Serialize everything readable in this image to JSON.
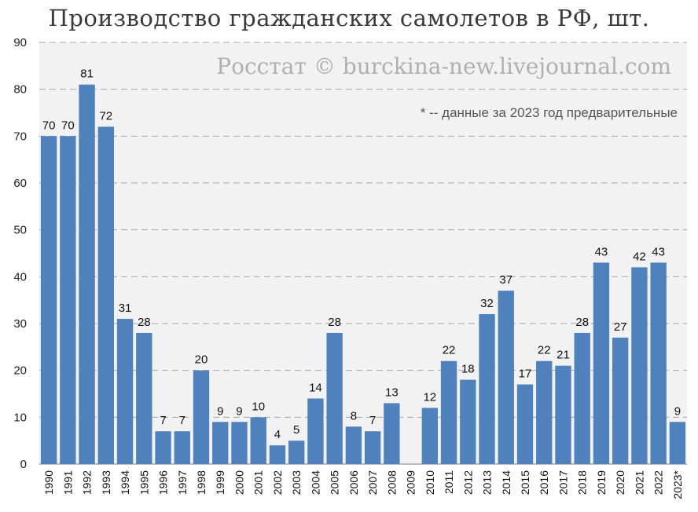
{
  "chart_data": {
    "type": "bar",
    "title": "Производство гражданских самолетов в РФ, шт.",
    "watermark": "Росстат © burckina-new.livejournal.com",
    "footnote": "* -- данные за 2023 год предварительные",
    "categories": [
      "1990",
      "1991",
      "1992",
      "1993",
      "1994",
      "1995",
      "1996",
      "1997",
      "1998",
      "1999",
      "2000",
      "2001",
      "2002",
      "2003",
      "2004",
      "2005",
      "2006",
      "2007",
      "2008",
      "2009",
      "2010",
      "2011",
      "2012",
      "2013",
      "2014",
      "2015",
      "2016",
      "2017",
      "2018",
      "2019",
      "2020",
      "2021",
      "2022",
      "2023*"
    ],
    "values": [
      70,
      70,
      81,
      72,
      31,
      28,
      7,
      7,
      20,
      9,
      9,
      10,
      4,
      5,
      14,
      28,
      8,
      7,
      13,
      null,
      12,
      22,
      18,
      32,
      37,
      17,
      22,
      21,
      28,
      43,
      27,
      42,
      43,
      9
    ],
    "ylim": [
      0,
      90
    ],
    "yticks": [
      0,
      10,
      20,
      30,
      40,
      50,
      60,
      70,
      80,
      90
    ],
    "grid": true,
    "bar_color": "#4f81bd",
    "plot_background": "#f2f2f2",
    "grid_color": "#a6a6a6"
  }
}
